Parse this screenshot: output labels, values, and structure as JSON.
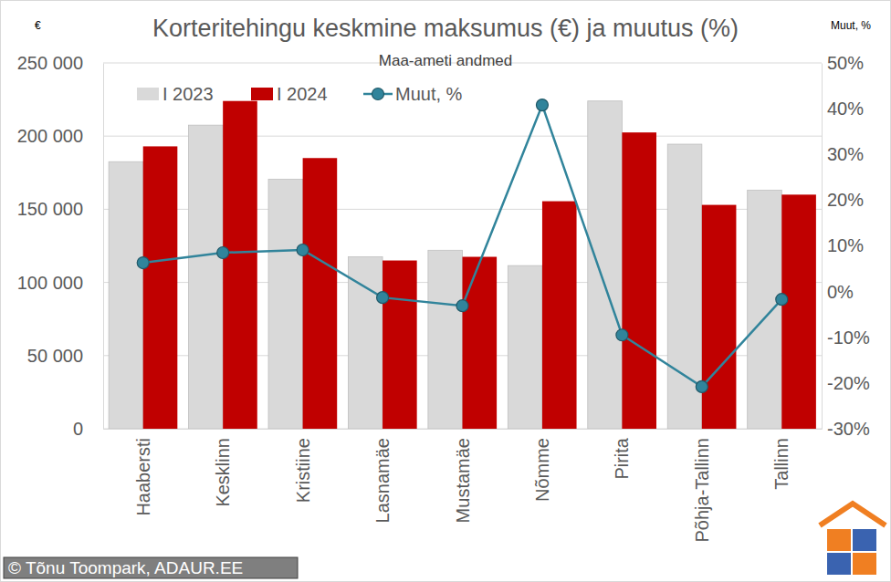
{
  "chart_data": {
    "type": "bar",
    "title": "Korteritehingu keskmine maksumus (€) ja muutus (%)",
    "subtitle": "Maa-ameti andmed",
    "y_label": "€",
    "y2_label": "Muut, %",
    "credit": "© Tõnu Toompark, ADAUR.EE",
    "categories": [
      "Haabersti",
      "Kesklinn",
      "Kristiine",
      "Lasnamäe",
      "Mustamäe",
      "Nõmme",
      "Pirita",
      "Põhja-Tallinn",
      "Tallinn"
    ],
    "series": [
      {
        "name": "I 2023",
        "color": "#d9d9d9",
        "values": [
          182500,
          207500,
          170500,
          117500,
          122000,
          111500,
          224000,
          194500,
          163000
        ]
      },
      {
        "name": "I 2024",
        "color": "#c00000",
        "values": [
          193000,
          224000,
          185000,
          115000,
          117500,
          155500,
          202500,
          153000,
          160000
        ]
      },
      {
        "name": "Muut, %",
        "color": "#31849b",
        "type": "line",
        "marker": "circle",
        "axis": "y2",
        "values": [
          6.3,
          8.5,
          9.1,
          -1.3,
          -3.1,
          40.8,
          -9.5,
          -20.8,
          -1.7
        ]
      }
    ],
    "ylim": [
      0,
      250000
    ],
    "yticks": [
      0,
      {
        "value": 50000,
        "label": "50 000"
      },
      {
        "value": 100000,
        "label": "100 000"
      },
      {
        "value": 150000,
        "label": "150 000"
      },
      {
        "value": 200000,
        "label": "200 000"
      },
      {
        "value": 250000,
        "label": "250 000"
      }
    ],
    "y2lim": [
      -30,
      50
    ],
    "y2ticks": [
      {
        "value": -30,
        "label": "-30%"
      },
      {
        "value": -20,
        "label": "-20%"
      },
      {
        "value": -10,
        "label": "-10%"
      },
      {
        "value": 0,
        "label": "0%"
      },
      {
        "value": 10,
        "label": "10%"
      },
      {
        "value": 20,
        "label": "20%"
      },
      {
        "value": 30,
        "label": "30%"
      },
      {
        "value": 40,
        "label": "40%"
      },
      {
        "value": 50,
        "label": "50%"
      }
    ],
    "grid": true,
    "legend": "top"
  }
}
